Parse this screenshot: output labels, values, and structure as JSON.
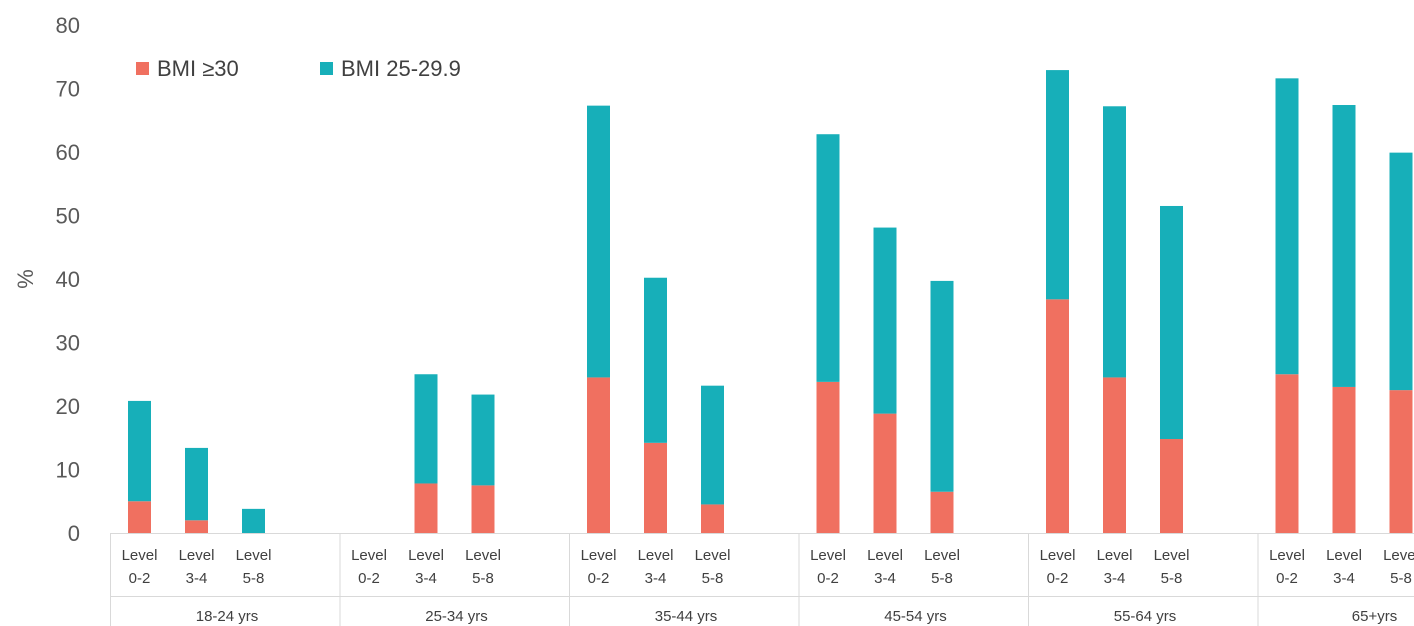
{
  "chart_data": {
    "type": "bar",
    "stacked": true,
    "ylabel": "%",
    "xlabel": "",
    "ylim": [
      0,
      80
    ],
    "yticks": [
      0,
      10,
      20,
      30,
      40,
      50,
      60,
      70,
      80
    ],
    "grid": false,
    "legend_position": "top-left",
    "groups": [
      {
        "label": "18-24 yrs",
        "levels": [
          {
            "l1": "Level",
            "l2": "0-2"
          },
          {
            "l1": "Level",
            "l2": "3-4"
          },
          {
            "l1": "Level",
            "l2": "5-8"
          }
        ]
      },
      {
        "label": "25-34 yrs",
        "levels": [
          {
            "l1": "Level",
            "l2": "0-2"
          },
          {
            "l1": "Level",
            "l2": "3-4"
          },
          {
            "l1": "Level",
            "l2": "5-8"
          }
        ]
      },
      {
        "label": "35-44 yrs",
        "levels": [
          {
            "l1": "Level",
            "l2": "0-2"
          },
          {
            "l1": "Level",
            "l2": "3-4"
          },
          {
            "l1": "Level",
            "l2": "5-8"
          }
        ]
      },
      {
        "label": "45-54 yrs",
        "levels": [
          {
            "l1": "Level",
            "l2": "0-2"
          },
          {
            "l1": "Level",
            "l2": "3-4"
          },
          {
            "l1": "Level",
            "l2": "5-8"
          }
        ]
      },
      {
        "label": "55-64 yrs",
        "levels": [
          {
            "l1": "Level",
            "l2": "0-2"
          },
          {
            "l1": "Level",
            "l2": "3-4"
          },
          {
            "l1": "Level",
            "l2": "5-8"
          }
        ]
      },
      {
        "label": "65+yrs",
        "levels": [
          {
            "l1": "Level",
            "l2": "0-2"
          },
          {
            "l1": "Level",
            "l2": "3-4"
          },
          {
            "l1": "Level",
            "l2": "5-8"
          }
        ]
      }
    ],
    "series": [
      {
        "name": "BMI ≥30",
        "color": "#F07060",
        "values": [
          5,
          2,
          0,
          0,
          7.8,
          7.5,
          24.5,
          14.2,
          4.5,
          23.8,
          18.8,
          6.5,
          36.8,
          24.5,
          14.8,
          25,
          23,
          22.5
        ]
      },
      {
        "name": "BMI 25-29.9",
        "color": "#17AFB9",
        "values": [
          15.8,
          11.4,
          3.8,
          0,
          17.2,
          14.3,
          42.8,
          26,
          18.7,
          39,
          29.3,
          33.2,
          36.1,
          42.7,
          36.7,
          46.6,
          44.4,
          37.4
        ]
      }
    ]
  }
}
